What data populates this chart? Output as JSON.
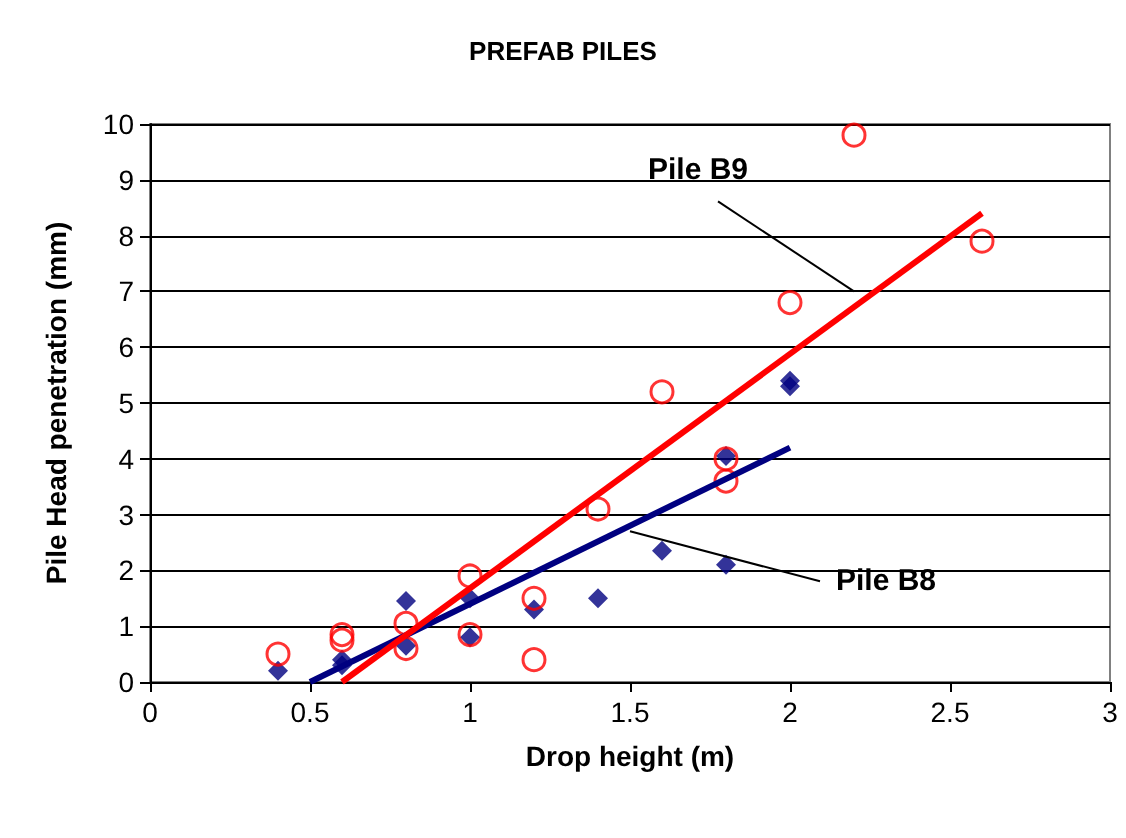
{
  "chart_data": {
    "type": "scatter",
    "title": "PREFAB PILES",
    "xlabel": "Drop height (m)",
    "ylabel": "Pile Head penetration (mm)",
    "xlim": [
      0,
      3
    ],
    "xticks": [
      0,
      0.5,
      1,
      1.5,
      2,
      2.5,
      3
    ],
    "ylim": [
      0,
      10
    ],
    "yticks": [
      0,
      1,
      2,
      3,
      4,
      5,
      6,
      7,
      8,
      9,
      10
    ],
    "grid": "y",
    "series": [
      {
        "marker": "diamond",
        "color": "#000080",
        "x": [
          0.4,
          0.6,
          0.6,
          0.8,
          0.8,
          1.0,
          1.0,
          1.2,
          1.4,
          1.6,
          1.8,
          1.8,
          2.0,
          2.0
        ],
        "values": [
          0.2,
          0.3,
          0.4,
          1.45,
          0.65,
          1.5,
          0.8,
          1.3,
          1.5,
          2.35,
          2.1,
          4.05,
          5.4,
          5.3
        ]
      },
      {
        "marker": "circle",
        "color": "#ff0000",
        "x": [
          0.4,
          0.6,
          0.6,
          0.8,
          0.8,
          1.0,
          1.0,
          1.2,
          1.2,
          1.4,
          1.6,
          1.8,
          1.8,
          2.0,
          2.2,
          2.6
        ],
        "values": [
          0.5,
          0.85,
          0.75,
          1.05,
          0.6,
          1.9,
          0.85,
          1.5,
          0.4,
          3.1,
          5.2,
          4.0,
          3.6,
          6.8,
          9.8,
          7.9
        ]
      },
      {
        "type": "line",
        "marker": "none",
        "color": "#000080",
        "x": [
          0.5,
          2.0
        ],
        "values": [
          0,
          4.2
        ]
      },
      {
        "type": "line",
        "marker": "none",
        "color": "#ff0000",
        "x": [
          0.6,
          2.6
        ],
        "values": [
          0,
          8.4
        ]
      }
    ],
    "annotations": [
      {
        "text": "Pile B9",
        "x": 2.2,
        "y": 7.0
      },
      {
        "text": "Pile B8",
        "x": 1.5,
        "y": 2.7
      }
    ]
  }
}
